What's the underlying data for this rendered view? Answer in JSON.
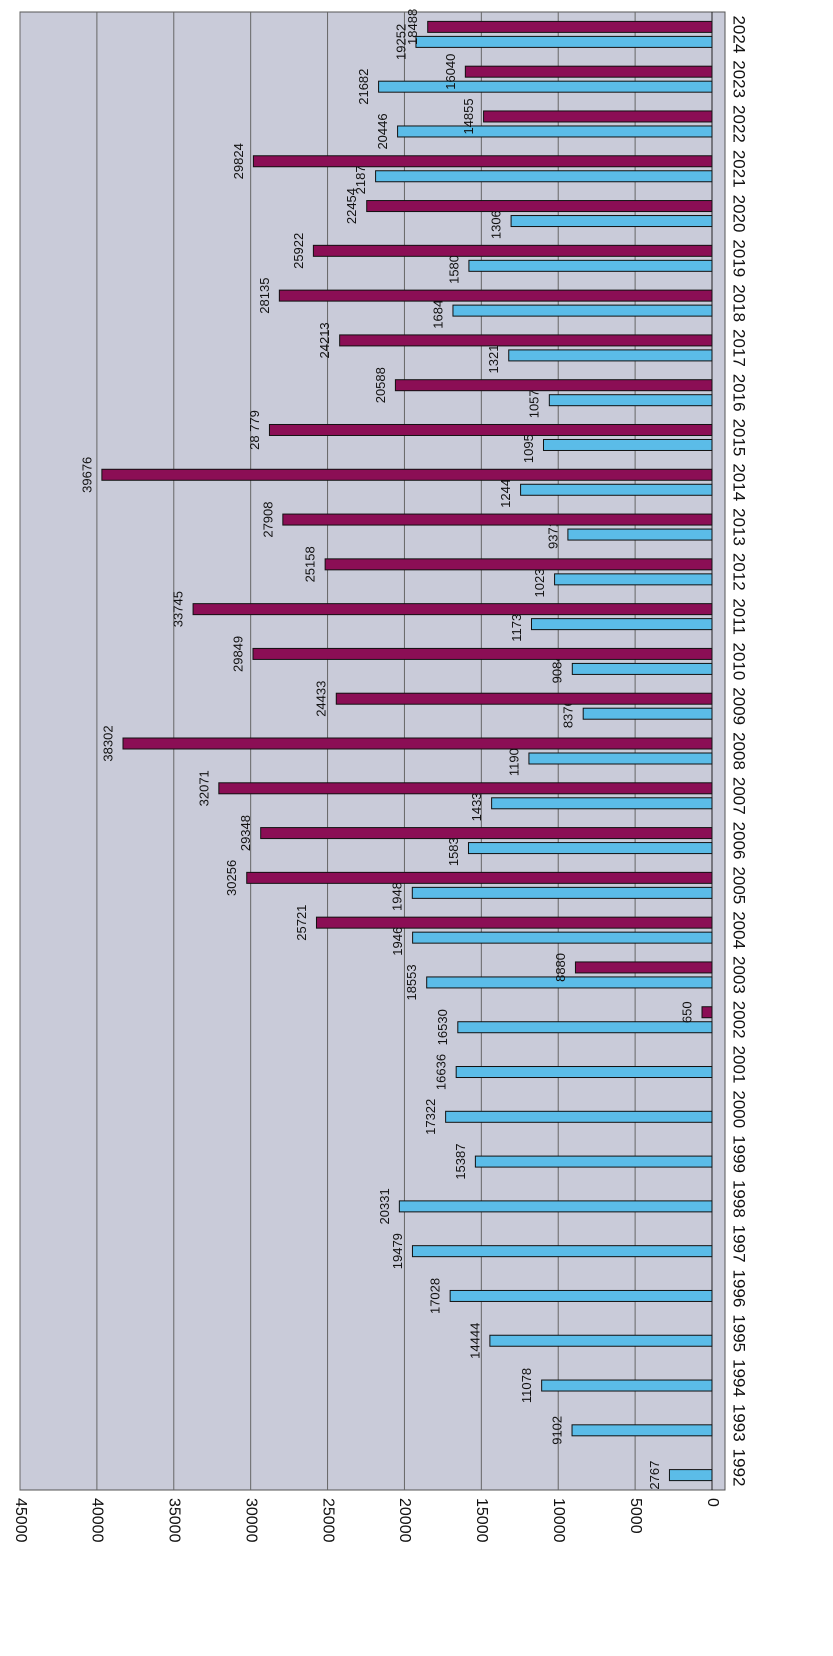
{
  "chart_data": {
    "type": "bar",
    "orientation": "rotated",
    "categories": [
      "1992",
      "1993",
      "1994",
      "1995",
      "1996",
      "1997",
      "1998",
      "1999",
      "2000",
      "2001",
      "2002",
      "2003",
      "2004",
      "2005",
      "2006",
      "2007",
      "2008",
      "2009",
      "2010",
      "2011",
      "2012",
      "2013",
      "2014",
      "2015",
      "2016",
      "2017",
      "2018",
      "2019",
      "2020",
      "2021",
      "2022",
      "2023",
      "2024"
    ],
    "series": [
      {
        "color": "#5bbce8",
        "values": [
          2767,
          9102,
          11078,
          14444,
          17028,
          19479,
          20331,
          15387,
          17322,
          16636,
          16530,
          18553,
          19469,
          19489,
          15836,
          14331,
          11905,
          8376,
          9084,
          11738,
          10237,
          9371,
          12447,
          10958,
          10579,
          13218,
          16845,
          15808,
          13065,
          21876,
          20446,
          21682,
          19252
        ]
      },
      {
        "color": "#8b0e55",
        "values": [
          null,
          null,
          null,
          null,
          null,
          null,
          null,
          null,
          null,
          null,
          650,
          8880,
          25721,
          30256,
          29348,
          32071,
          38302,
          24433,
          29849,
          33745,
          25158,
          27908,
          39676,
          28779,
          20588,
          24213,
          28135,
          25922,
          22454,
          29824,
          14855,
          16040,
          18488
        ],
        "value_labels": [
          null,
          null,
          null,
          null,
          null,
          null,
          null,
          null,
          null,
          null,
          "650",
          "8880",
          "25721",
          "30256",
          "29348",
          "32071",
          "38302",
          "24433",
          "29849",
          "33745",
          "25158",
          "27908",
          "39676",
          "28 779",
          "20588",
          "24213",
          "28135",
          "25922",
          "22454",
          "29824",
          "14855",
          "16040",
          "18488"
        ]
      }
    ],
    "ylim": [
      0,
      45000
    ],
    "yticks": [
      0,
      5000,
      10000,
      15000,
      20000,
      25000,
      30000,
      35000,
      40000,
      45000
    ],
    "grid": true
  }
}
